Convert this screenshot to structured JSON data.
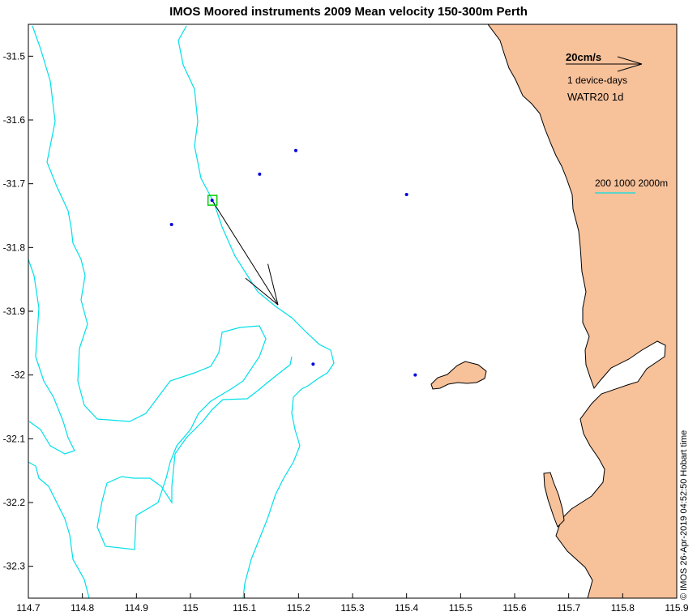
{
  "title": "IMOS Moored instruments 2009 Mean velocity 150-300m Perth",
  "stamp": "© IMOS 26-Apr-2019 04:52:50 Hobart time",
  "colors": {
    "land": "#f7c19a",
    "isobath": "#00e0e8",
    "mooring": "#0000dd",
    "highlight": "#00cc00",
    "vector": "#000000"
  },
  "legend": {
    "scale_label": "20cm/s",
    "scale_sub": "1 device-days",
    "site_label": "WATR20 1d",
    "isobath_label": "200 1000 2000m"
  },
  "axes": {
    "xlim": [
      114.7,
      115.9
    ],
    "ylim": [
      -32.35,
      -31.45
    ],
    "xticks": [
      "114.7",
      "114.8",
      "114.9",
      "115",
      "115.1",
      "115.2",
      "115.3",
      "115.4",
      "115.5",
      "115.6",
      "115.7",
      "115.8",
      "115.9"
    ],
    "yticks": [
      "-31.5",
      "-31.6",
      "-31.7",
      "-31.8",
      "-31.9",
      "-32",
      "-32.1",
      "-32.2",
      "-32.3"
    ]
  },
  "chart_data": {
    "type": "scatter",
    "title": "IMOS Moored instruments 2009 Mean velocity 150-300m Perth",
    "moorings": [
      {
        "lon": 115.195,
        "lat": -31.648
      },
      {
        "lon": 115.128,
        "lat": -31.685
      },
      {
        "lon": 115.4,
        "lat": -31.717
      },
      {
        "lon": 115.04,
        "lat": -31.726
      },
      {
        "lon": 114.965,
        "lat": -31.764
      },
      {
        "lon": 115.227,
        "lat": -31.983
      },
      {
        "lon": 115.416,
        "lat": -32.0
      }
    ],
    "highlighted_mooring": {
      "lon": 115.04,
      "lat": -31.726,
      "name": "WATR20"
    },
    "vector": {
      "start_lon": 115.04,
      "start_lat": -31.726,
      "end_lon": 115.162,
      "end_lat": -31.89
    }
  }
}
